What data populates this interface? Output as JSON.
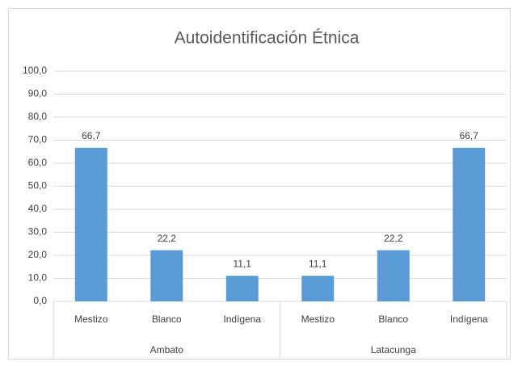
{
  "chart_data": {
    "type": "bar",
    "title": "Autoidentificación Étnica",
    "groups": [
      {
        "name": "Ambato",
        "categories": [
          "Mestizo",
          "Blanco",
          "Indígena"
        ],
        "values": [
          66.7,
          22.2,
          11.1
        ],
        "value_labels": [
          "66,7",
          "22,2",
          "11,1"
        ]
      },
      {
        "name": "Latacunga",
        "categories": [
          "Mestizo",
          "Blanco",
          "Indígena"
        ],
        "values": [
          11.1,
          22.2,
          66.7
        ],
        "value_labels": [
          "11,1",
          "22,2",
          "66,7"
        ]
      }
    ],
    "color": "#5b9bd5",
    "ylim": [
      0,
      100
    ],
    "yticks": [
      {
        "value": 0,
        "label": "0,0"
      },
      {
        "value": 10,
        "label": "10,0"
      },
      {
        "value": 20,
        "label": "20,0"
      },
      {
        "value": 30,
        "label": "30,0"
      },
      {
        "value": 40,
        "label": "40,0"
      },
      {
        "value": 50,
        "label": "50,0"
      },
      {
        "value": 60,
        "label": "60,0"
      },
      {
        "value": 70,
        "label": "70,0"
      },
      {
        "value": 80,
        "label": "80,0"
      },
      {
        "value": 90,
        "label": "90,0"
      },
      {
        "value": 100,
        "label": "100,0"
      }
    ],
    "grid": true
  }
}
